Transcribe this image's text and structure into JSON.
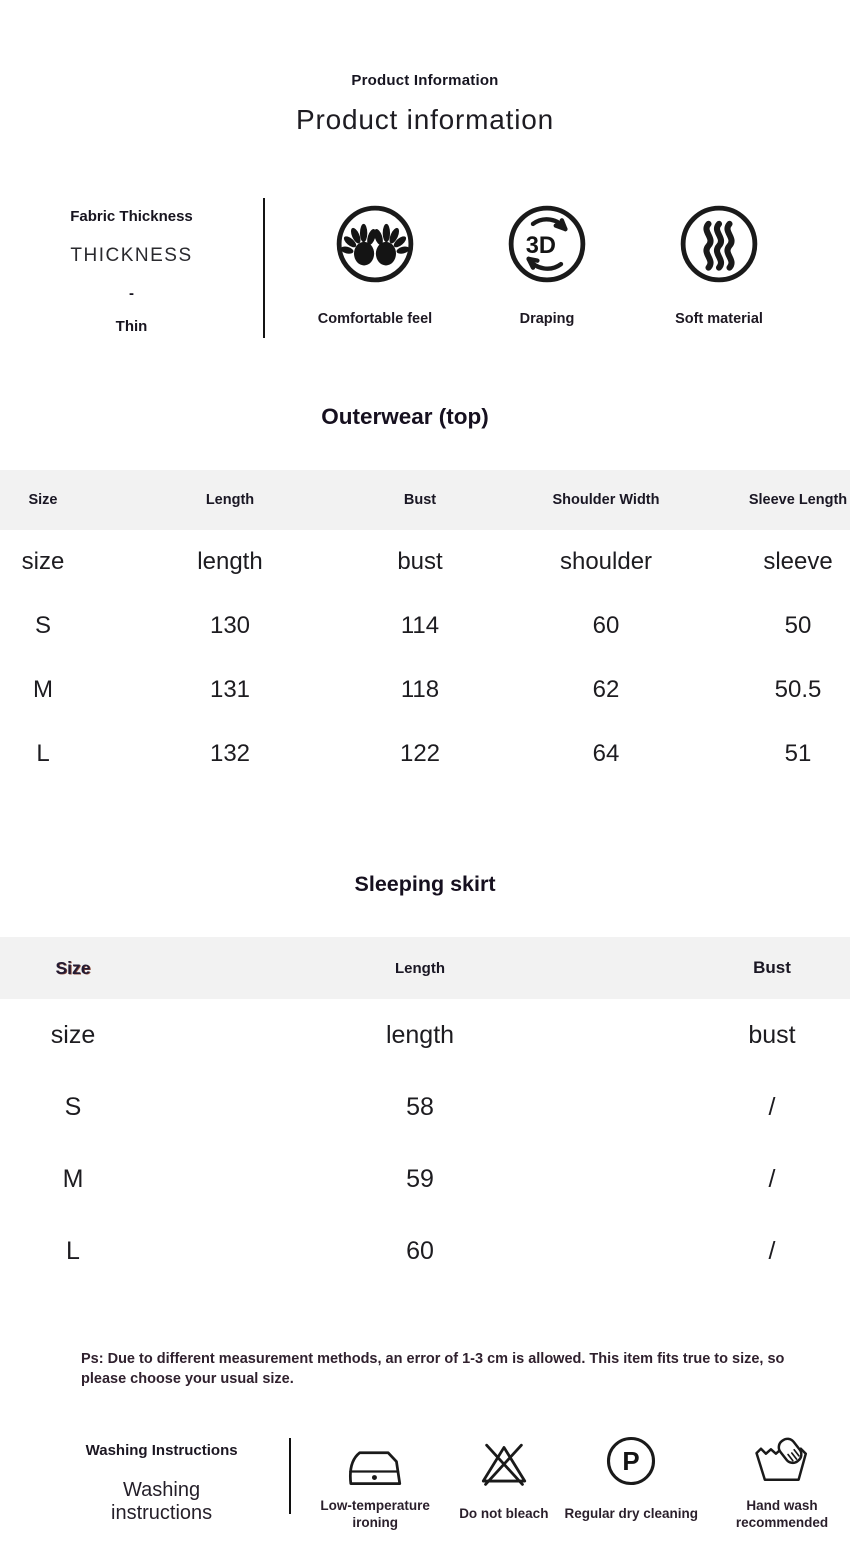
{
  "page": {
    "title_small": "Product Information",
    "title_large": "Product information"
  },
  "fabric": {
    "label": "Fabric Thickness",
    "value_line1": "THICKNESS",
    "value_line2": "-",
    "value_line3": "Thin",
    "features": [
      {
        "icon": "hands-icon",
        "label": "Comfortable feel"
      },
      {
        "icon": "rotate-3d-icon",
        "icon_text": "3D",
        "label": "Draping"
      },
      {
        "icon": "steam-waves-icon",
        "label": "Soft material"
      }
    ]
  },
  "outerwear_table": {
    "heading": "Outerwear (top)",
    "columns": [
      "Size",
      "Length",
      "Bust",
      "Shoulder Width",
      "Sleeve Length"
    ],
    "rows": [
      [
        "size",
        "length",
        "bust",
        "shoulder",
        "sleeve"
      ],
      [
        "S",
        "130",
        "114",
        "60",
        "50"
      ],
      [
        "M",
        "131",
        "118",
        "62",
        "50.5"
      ],
      [
        "L",
        "132",
        "122",
        "64",
        "51"
      ]
    ]
  },
  "skirt_table": {
    "heading": "Sleeping skirt",
    "columns": [
      "Size",
      "Length",
      "Bust"
    ],
    "rows": [
      [
        "size",
        "length",
        "bust"
      ],
      [
        "S",
        "58",
        "/"
      ],
      [
        "M",
        "59",
        "/"
      ],
      [
        "L",
        "60",
        "/"
      ]
    ]
  },
  "note": {
    "text": "Ps: Due to different measurement methods, an error of 1-3 cm is allowed. This item fits true to size, so please choose your usual size."
  },
  "washing": {
    "label": "Washing Instructions",
    "sublabel": "Washing instructions",
    "items": [
      {
        "icon": "iron-icon",
        "label": "Low-temperature ironing"
      },
      {
        "icon": "do-not-bleach-icon",
        "label": "Do not bleach"
      },
      {
        "icon": "dry-clean-p-icon",
        "icon_text": "P",
        "label": "Regular dry cleaning"
      },
      {
        "icon": "hand-wash-icon",
        "label": "Hand wash recommended"
      }
    ]
  },
  "colors": {
    "table_header_bg": "#f2f2f2",
    "text_dark": "#1d1a24",
    "note_text": "#30212e",
    "icon_stroke": "#1a1a1a"
  }
}
